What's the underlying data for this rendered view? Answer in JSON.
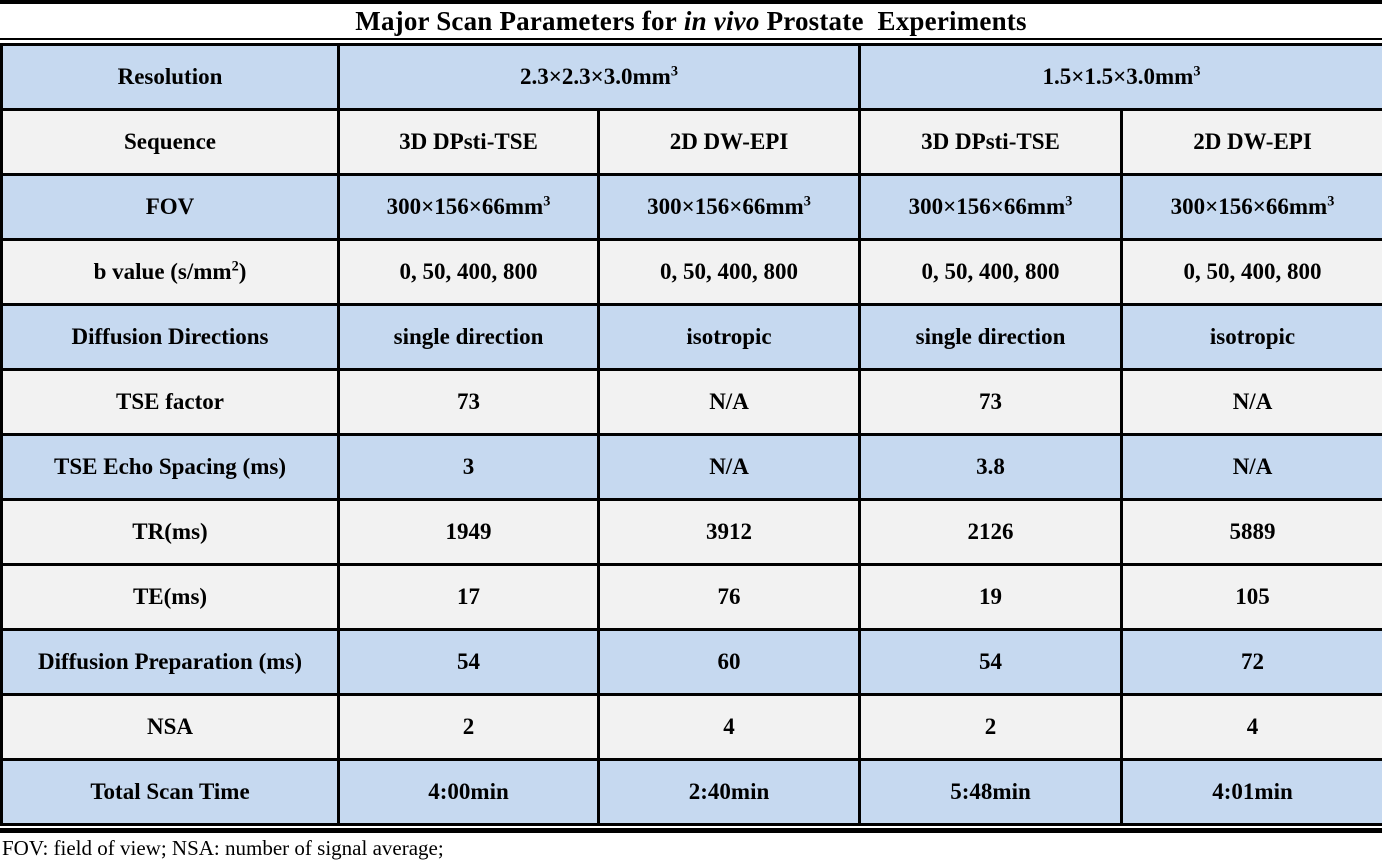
{
  "title": {
    "prefix": "Major Scan Parameters for",
    "italic": "in vivo",
    "suffix": "Prostate  Experiments"
  },
  "colors": {
    "row_blue": "#c6d9f0",
    "row_gray": "#f2f2f2",
    "border": "#000000",
    "text": "#000000"
  },
  "table": {
    "rows": [
      {
        "label": "Resolution",
        "shade": "blue",
        "merged": true,
        "values": [
          "2.3×2.3×3.0mm^3",
          "1.5×1.5×3.0mm^3"
        ]
      },
      {
        "label": "Sequence",
        "shade": "gray",
        "values": [
          "3D DPsti-TSE",
          "2D DW-EPI",
          "3D DPsti-TSE",
          "2D DW-EPI"
        ]
      },
      {
        "label": "FOV",
        "shade": "blue",
        "values": [
          "300×156×66mm^3",
          "300×156×66mm^3",
          "300×156×66mm^3",
          "300×156×66mm^3"
        ]
      },
      {
        "label": "b value (s/mm^2)",
        "shade": "gray",
        "values": [
          "0, 50, 400, 800",
          "0, 50, 400, 800",
          "0, 50, 400, 800",
          "0, 50, 400, 800"
        ]
      },
      {
        "label": "Diffusion Directions",
        "shade": "blue",
        "values": [
          "single direction",
          "isotropic",
          "single direction",
          "isotropic"
        ]
      },
      {
        "label": "TSE factor",
        "shade": "gray",
        "values": [
          "73",
          "N/A",
          "73",
          "N/A"
        ]
      },
      {
        "label": "TSE Echo Spacing (ms)",
        "shade": "blue",
        "values": [
          "3",
          "N/A",
          "3.8",
          "N/A"
        ]
      },
      {
        "label": "TR(ms)",
        "shade": "gray",
        "values": [
          "1949",
          "3912",
          "2126",
          "5889"
        ]
      },
      {
        "label": "TE(ms)",
        "shade": "gray",
        "values": [
          "17",
          "76",
          "19",
          "105"
        ]
      },
      {
        "label": "Diffusion Preparation (ms)",
        "shade": "blue",
        "values": [
          "54",
          "60",
          "54",
          "72"
        ]
      },
      {
        "label": "NSA",
        "shade": "gray",
        "values": [
          "2",
          "4",
          "2",
          "4"
        ]
      },
      {
        "label": "Total Scan Time",
        "shade": "blue",
        "values": [
          "4:00min",
          "2:40min",
          "5:48min",
          "4:01min"
        ]
      }
    ]
  },
  "footnote": "FOV: field of view; NSA: number of signal average;"
}
